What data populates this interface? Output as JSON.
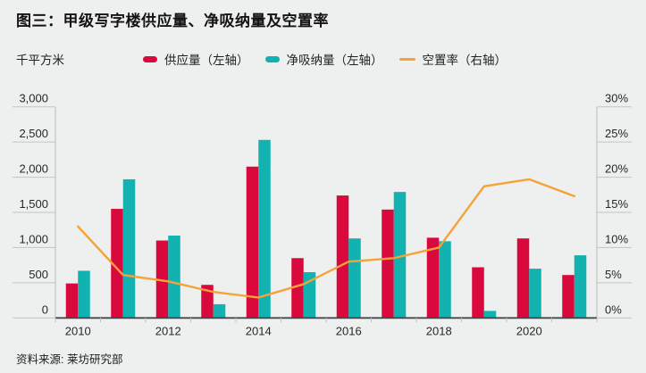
{
  "title": "图三：甲级写字楼供应量、净吸纳量及空置率",
  "unit_label": "千平方米",
  "source": "资料来源: 莱坊研究部",
  "colors": {
    "supply": "#d9093d",
    "net_absorption": "#12b2b0",
    "vacancy": "#f7a239",
    "background": "#edf0ee",
    "axis_line": "#c1c5c2",
    "baseline": "#45494b",
    "axis_text": "#272727"
  },
  "legend": [
    {
      "label": "供应量（左轴）",
      "color": "#d9093d",
      "marker": "bar"
    },
    {
      "label": "净吸纳量（左轴）",
      "color": "#12b2b0",
      "marker": "bar"
    },
    {
      "label": "空置率（右轴）",
      "color": "#f7a239",
      "marker": "line"
    }
  ],
  "chart_data": {
    "type": "bar",
    "subtype": "grouped-bars-with-line",
    "categories": [
      "2010",
      "2011",
      "2012",
      "2013",
      "2014",
      "2015",
      "2016",
      "2017",
      "2018",
      "2019",
      "2020",
      "2021"
    ],
    "series": [
      {
        "name": "供应量（左轴）",
        "type": "bar",
        "axis": "left",
        "color": "#d9093d",
        "values": [
          490,
          1550,
          1100,
          470,
          2150,
          850,
          1740,
          1540,
          1140,
          720,
          1130,
          610
        ]
      },
      {
        "name": "净吸纳量（左轴）",
        "type": "bar",
        "axis": "left",
        "color": "#12b2b0",
        "values": [
          670,
          1970,
          1170,
          195,
          2530,
          650,
          1130,
          1790,
          1090,
          100,
          700,
          890
        ]
      },
      {
        "name": "空置率（右轴）",
        "type": "line",
        "axis": "right",
        "color": "#f7a239",
        "values": [
          13.0,
          6.1,
          5.2,
          3.7,
          2.9,
          4.8,
          8.0,
          8.5,
          10.0,
          18.7,
          19.7,
          17.3
        ]
      }
    ],
    "title": "图三：甲级写字楼供应量、净吸纳量及空置率",
    "ylabel_left": "千平方米",
    "left_axis": {
      "range": [
        0,
        3000
      ],
      "tick_step": 500,
      "tick_labels": [
        "0",
        "500",
        "1,000",
        "1,500",
        "2,000",
        "2,500",
        "3,000"
      ]
    },
    "right_axis": {
      "range": [
        0,
        30
      ],
      "tick_step": 5,
      "tick_labels": [
        "0%",
        "5%",
        "10%",
        "15%",
        "20%",
        "25%",
        "30%"
      ]
    },
    "x_axis": {
      "labeled_categories": [
        "2010",
        "2012",
        "2014",
        "2016",
        "2018",
        "2020"
      ]
    },
    "grid": "tick-stubs-only",
    "legend_position": "top"
  }
}
